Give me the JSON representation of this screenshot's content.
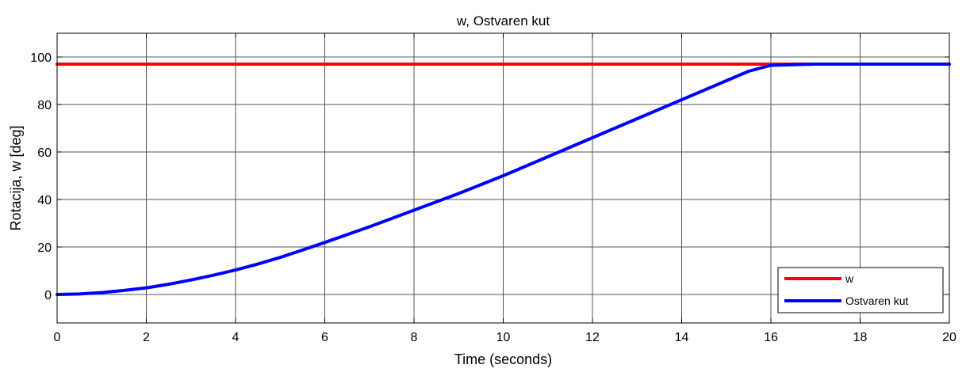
{
  "chart_data": {
    "type": "line",
    "title": "w, Ostvaren kut",
    "xlabel": "Time (seconds)",
    "ylabel": "Rotacija, w [deg]",
    "xlim": [
      0,
      20
    ],
    "ylim": [
      -12,
      110
    ],
    "xticks": [
      0,
      2,
      4,
      6,
      8,
      10,
      12,
      14,
      16,
      18,
      20
    ],
    "yticks": [
      0,
      20,
      40,
      60,
      80,
      100
    ],
    "grid": true,
    "legend_position": "bottom-right",
    "series": [
      {
        "name": "w",
        "color": "#ff0000",
        "x": [
          0,
          20
        ],
        "y": [
          97,
          97
        ]
      },
      {
        "name": "Ostvaren kut",
        "color": "#0000ff",
        "x": [
          0,
          0.5,
          1,
          1.5,
          2,
          2.5,
          3,
          3.5,
          4,
          4.5,
          5,
          5.5,
          6,
          7,
          8,
          9,
          10,
          11,
          12,
          13,
          14,
          15,
          15.5,
          16,
          17,
          18,
          19,
          20
        ],
        "y": [
          0,
          0.2,
          0.8,
          1.7,
          2.8,
          4.3,
          6.1,
          8.1,
          10.3,
          12.8,
          15.6,
          18.7,
          21.9,
          28.5,
          35.5,
          42.5,
          50,
          58,
          66,
          74,
          82,
          90,
          94,
          96.5,
          97,
          97,
          97,
          97
        ]
      }
    ]
  }
}
